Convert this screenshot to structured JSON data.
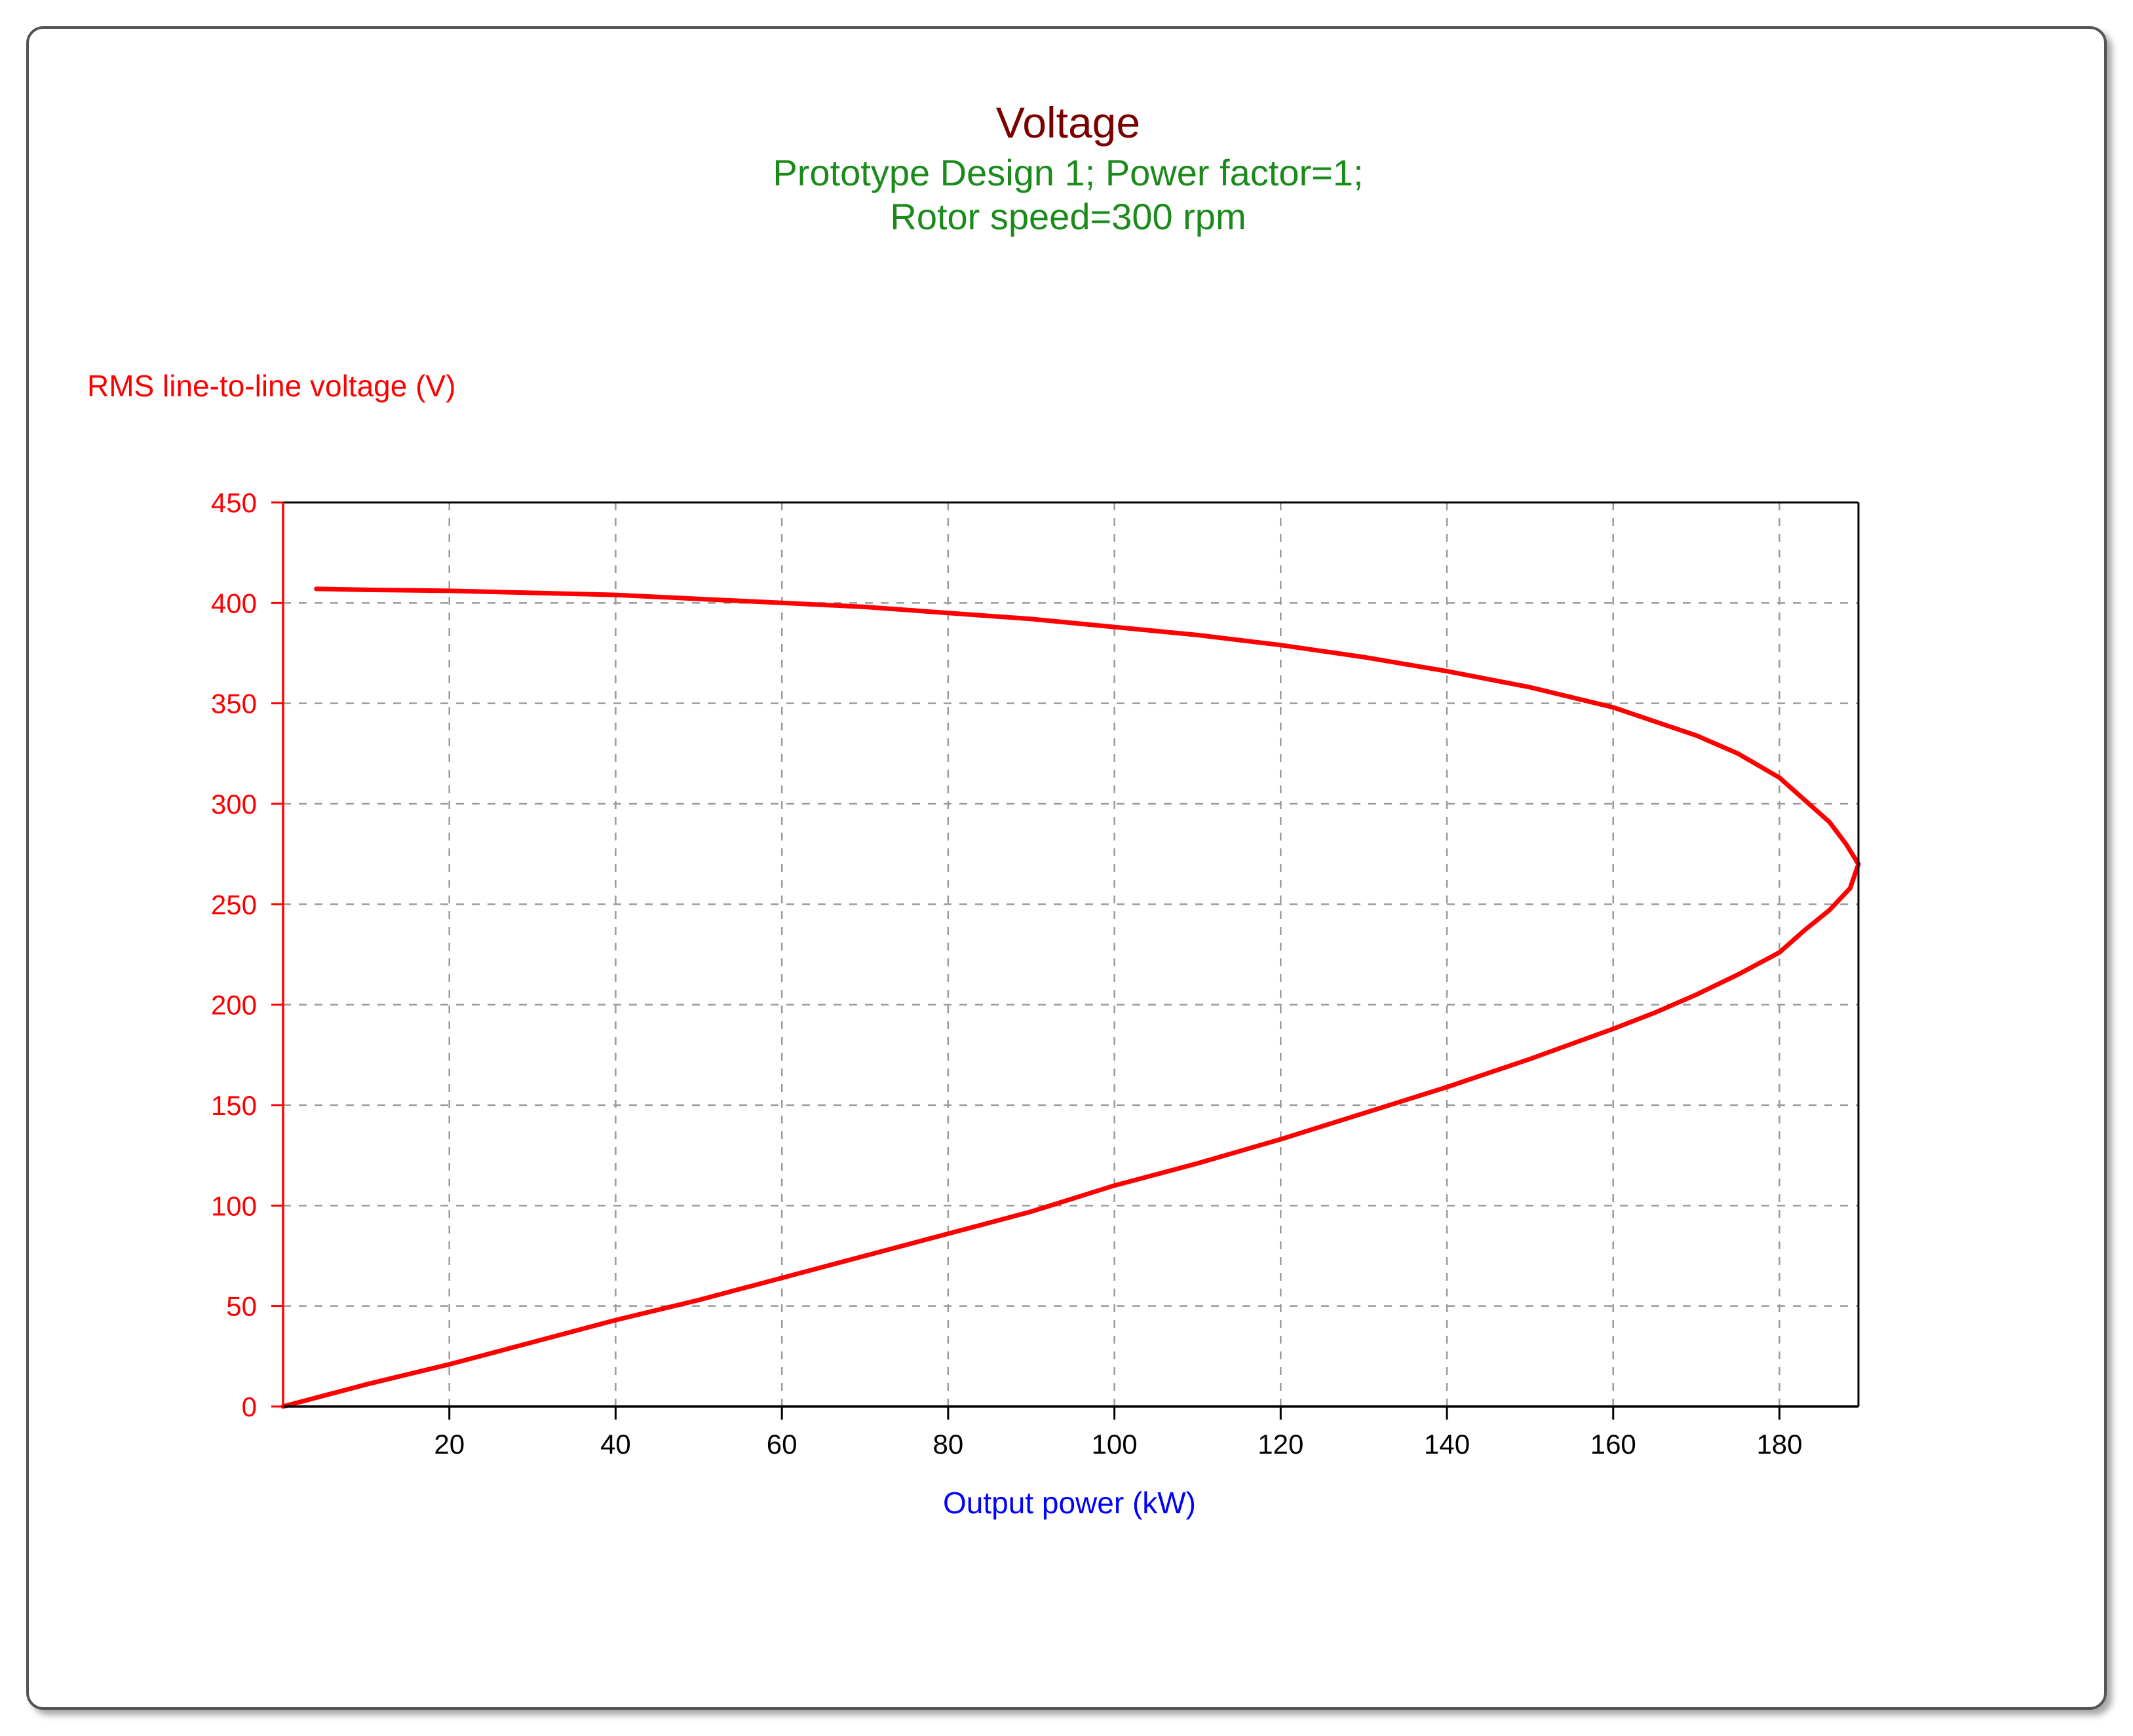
{
  "chart_data": {
    "type": "line",
    "title": "Voltage",
    "subtitle_lines": [
      "Prototype Design 1; Power factor=1;",
      "Rotor speed=300 rpm"
    ],
    "xlabel": "Output power (kW)",
    "ylabel": "RMS line-to-line voltage (V)",
    "xlim": [
      0,
      189.5
    ],
    "ylim": [
      0,
      450
    ],
    "xticks": [
      20,
      40,
      60,
      80,
      100,
      120,
      140,
      160,
      180
    ],
    "yticks": [
      0,
      50,
      100,
      150,
      200,
      250,
      300,
      350,
      400,
      450
    ],
    "grid": true,
    "colors": {
      "title": "#7a0000",
      "subtitle": "#1a8a1a",
      "ylabel": "#ff0000",
      "ytick": "#ff0000",
      "xlabel": "#0000ff",
      "xtick": "#000000",
      "series": "#ff0000",
      "grid": "#9a9a9a",
      "axis": "#000000",
      "yaxis": "#ff0000"
    },
    "series": [
      {
        "x": [
          4,
          10,
          20,
          30,
          40,
          50,
          60,
          70,
          80,
          90,
          100,
          110,
          120,
          130,
          140,
          150,
          160,
          165,
          170,
          175,
          180,
          183,
          186,
          188,
          189.5,
          188.5,
          186,
          183,
          180,
          175,
          170,
          165,
          160,
          150,
          140,
          130,
          120,
          110,
          100,
          90,
          80,
          70,
          60,
          50,
          40,
          30,
          20,
          10,
          0
        ],
        "y": [
          407,
          406.5,
          406,
          405,
          404,
          402,
          400,
          398,
          395,
          392,
          388,
          384,
          379,
          373,
          366,
          358,
          348,
          341,
          334,
          325,
          313,
          302,
          291,
          280,
          270,
          258,
          247,
          237,
          226,
          215,
          205,
          196,
          188,
          173,
          159,
          146,
          133,
          121,
          110,
          97,
          86,
          75,
          64,
          53,
          43,
          32,
          21,
          11,
          0
        ]
      }
    ]
  }
}
